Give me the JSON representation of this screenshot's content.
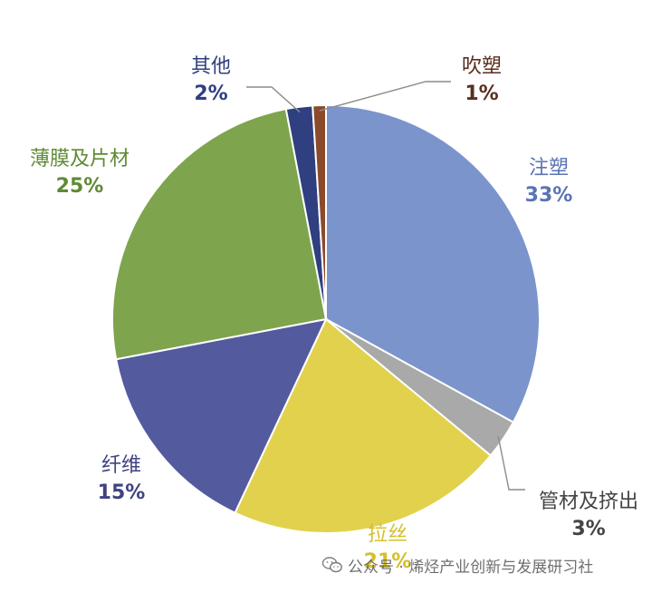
{
  "chart_data": {
    "type": "pie",
    "slices": [
      {
        "label": "注塑",
        "value": 33,
        "value_text": "33%",
        "color": "#7b94cc"
      },
      {
        "label": "管材及挤出",
        "value": 3,
        "value_text": "3%",
        "color": "#a9a9a9"
      },
      {
        "label": "拉丝",
        "value": 21,
        "value_text": "21%",
        "color": "#e2d14c"
      },
      {
        "label": "纤维",
        "value": 15,
        "value_text": "15%",
        "color": "#535a9e"
      },
      {
        "label": "薄膜及片材",
        "value": 25,
        "value_text": "25%",
        "color": "#7ea44e"
      },
      {
        "label": "其他",
        "value": 2,
        "value_text": "2%",
        "color": "#2f3f7f"
      },
      {
        "label": "吹塑",
        "value": 1,
        "value_text": "1%",
        "color": "#8b4a2b"
      }
    ],
    "label_colors": {
      "注塑": "#5b74b4",
      "管材及挤出": "#444444",
      "拉丝": "#d4c02a",
      "纤维": "#3f437f",
      "薄膜及片材": "#5f8a34",
      "其他": "#2f3f7f",
      "吹塑": "#5a2f1f"
    },
    "legend": "none"
  },
  "watermark": {
    "text": "公众号 · 烯烃产业创新与发展研习社",
    "icon": "wechat-icon"
  }
}
